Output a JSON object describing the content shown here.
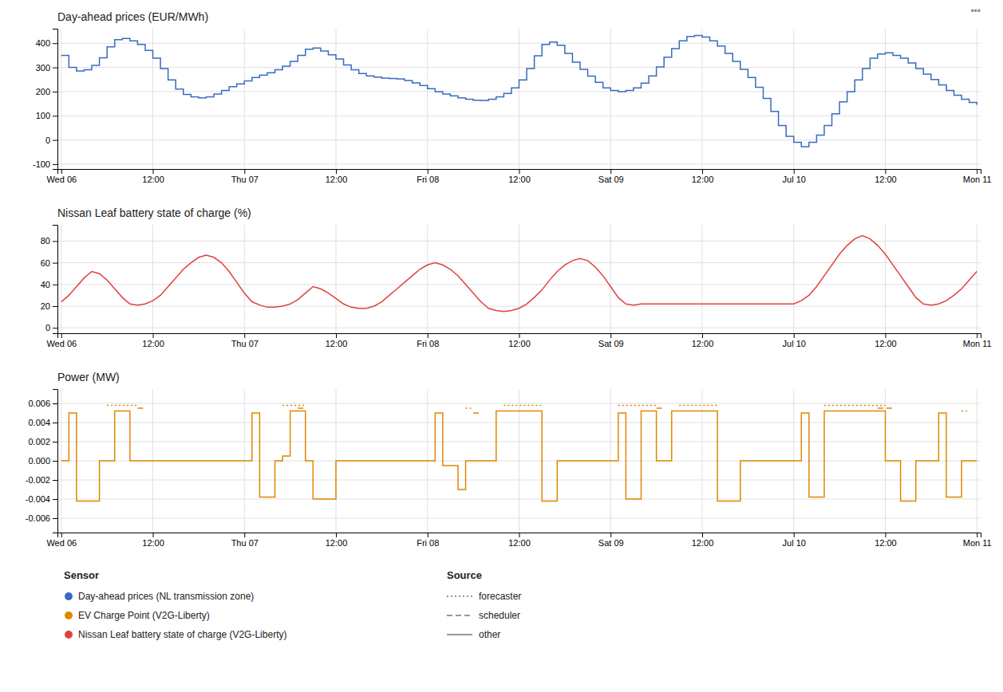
{
  "chart_data": [
    {
      "type": "step",
      "title": "Day-ahead prices (EUR/MWh)",
      "x": [
        0,
        1,
        2,
        3,
        4,
        5,
        6,
        7,
        8,
        9,
        10,
        11,
        12,
        13,
        14,
        15,
        16,
        17,
        18,
        19,
        20,
        21,
        22,
        23,
        24,
        25,
        26,
        27,
        28,
        29,
        30,
        31,
        32,
        33,
        34,
        35,
        36,
        37,
        38,
        39,
        40,
        41,
        42,
        43,
        44,
        45,
        46,
        47,
        48,
        49,
        50,
        51,
        52,
        53,
        54,
        55,
        56,
        57,
        58,
        59,
        60,
        61,
        62,
        63,
        64,
        65,
        66,
        67,
        68,
        69,
        70,
        71,
        72,
        73,
        74,
        75,
        76,
        77,
        78,
        79,
        80,
        81,
        82,
        83,
        84,
        85,
        86,
        87,
        88,
        89,
        90,
        91,
        92,
        93,
        94,
        95,
        96,
        97,
        98,
        99,
        100,
        101,
        102,
        103,
        104,
        105,
        106,
        107,
        108,
        109,
        110,
        111,
        112,
        113,
        114,
        115,
        116,
        117,
        118,
        119,
        120
      ],
      "series": [
        {
          "color": "#3a6abf",
          "values": [
            350,
            300,
            285,
            290,
            308,
            340,
            385,
            415,
            420,
            410,
            395,
            370,
            338,
            295,
            248,
            210,
            188,
            178,
            174,
            178,
            190,
            205,
            220,
            232,
            244,
            258,
            268,
            278,
            290,
            305,
            325,
            350,
            375,
            380,
            368,
            352,
            335,
            310,
            290,
            275,
            265,
            260,
            256,
            254,
            252,
            246,
            236,
            225,
            212,
            200,
            190,
            182,
            174,
            168,
            164,
            163,
            168,
            178,
            192,
            215,
            248,
            295,
            348,
            395,
            405,
            392,
            358,
            322,
            292,
            264,
            238,
            215,
            205,
            200,
            205,
            215,
            235,
            265,
            302,
            342,
            378,
            410,
            428,
            432,
            425,
            410,
            388,
            358,
            325,
            292,
            258,
            218,
            172,
            118,
            60,
            15,
            -10,
            -28,
            -10,
            20,
            60,
            108,
            158,
            200,
            248,
            295,
            338,
            355,
            360,
            350,
            338,
            318,
            295,
            272,
            250,
            228,
            205,
            185,
            168,
            155,
            145
          ]
        }
      ],
      "xlim": [
        -0.5,
        120.5
      ],
      "xticks": [
        {
          "value": 0,
          "label": "Wed 06"
        },
        {
          "value": 12,
          "label": "12:00"
        },
        {
          "value": 24,
          "label": "Thu 07"
        },
        {
          "value": 36,
          "label": "12:00"
        },
        {
          "value": 48,
          "label": "Fri 08"
        },
        {
          "value": 60,
          "label": "12:00"
        },
        {
          "value": 72,
          "label": "Sat 09"
        },
        {
          "value": 84,
          "label": "12:00"
        },
        {
          "value": 96,
          "label": "Jul 10"
        },
        {
          "value": 108,
          "label": "12:00"
        },
        {
          "value": 120,
          "label": "Mon 11"
        }
      ],
      "ylim": [
        -120,
        460
      ],
      "yticks": [
        -100,
        0,
        100,
        200,
        300,
        400
      ],
      "grid": true
    },
    {
      "type": "line",
      "title": "Nissan Leaf battery state of charge (%)",
      "x": [
        0,
        1,
        2,
        3,
        4,
        5,
        6,
        7,
        8,
        9,
        10,
        11,
        12,
        13,
        14,
        15,
        16,
        17,
        18,
        19,
        20,
        21,
        22,
        23,
        24,
        25,
        26,
        27,
        28,
        29,
        30,
        31,
        32,
        33,
        34,
        35,
        36,
        37,
        38,
        39,
        40,
        41,
        42,
        43,
        44,
        45,
        46,
        47,
        48,
        49,
        50,
        51,
        52,
        53,
        54,
        55,
        56,
        57,
        58,
        59,
        60,
        61,
        62,
        63,
        64,
        65,
        66,
        67,
        68,
        69,
        70,
        71,
        72,
        73,
        74,
        75,
        76,
        77,
        78,
        79,
        80,
        81,
        82,
        83,
        84,
        85,
        86,
        87,
        88,
        89,
        90,
        91,
        92,
        93,
        94,
        95,
        96,
        97,
        98,
        99,
        100,
        101,
        102,
        103,
        104,
        105,
        106,
        107,
        108,
        109,
        110,
        111,
        112,
        113,
        114,
        115,
        116,
        117,
        118,
        119,
        120
      ],
      "series": [
        {
          "color": "#e04040",
          "values": [
            24,
            30,
            38,
            46,
            52,
            50,
            44,
            36,
            28,
            22,
            21,
            22,
            25,
            30,
            38,
            46,
            54,
            60,
            65,
            67,
            65,
            60,
            52,
            42,
            32,
            24,
            21,
            19,
            19,
            20,
            22,
            26,
            32,
            38,
            36,
            32,
            27,
            22,
            19,
            18,
            18,
            20,
            24,
            30,
            36,
            42,
            48,
            54,
            58,
            60,
            58,
            54,
            48,
            40,
            32,
            24,
            18,
            16,
            15,
            16,
            18,
            22,
            28,
            35,
            44,
            52,
            58,
            62,
            64,
            62,
            56,
            48,
            38,
            28,
            22,
            21,
            22,
            22,
            22,
            22,
            22,
            22,
            22,
            22,
            22,
            22,
            22,
            22,
            22,
            22,
            22,
            22,
            22,
            22,
            22,
            22,
            22,
            25,
            30,
            38,
            48,
            58,
            68,
            76,
            82,
            85,
            82,
            76,
            68,
            58,
            48,
            38,
            28,
            22,
            21,
            22,
            25,
            30,
            36,
            44,
            52
          ]
        }
      ],
      "xlim": [
        -0.5,
        120.5
      ],
      "xticks": [
        {
          "value": 0,
          "label": "Wed 06"
        },
        {
          "value": 12,
          "label": "12:00"
        },
        {
          "value": 24,
          "label": "Thu 07"
        },
        {
          "value": 36,
          "label": "12:00"
        },
        {
          "value": 48,
          "label": "Fri 08"
        },
        {
          "value": 60,
          "label": "12:00"
        },
        {
          "value": 72,
          "label": "Sat 09"
        },
        {
          "value": 84,
          "label": "12:00"
        },
        {
          "value": 96,
          "label": "Jul 10"
        },
        {
          "value": 108,
          "label": "12:00"
        },
        {
          "value": 120,
          "label": "Mon 11"
        }
      ],
      "ylim": [
        -5,
        95
      ],
      "yticks": [
        0,
        20,
        40,
        60,
        80
      ],
      "grid": true
    },
    {
      "type": "step",
      "title": "Power (MW)",
      "x": [
        0,
        1,
        2,
        3,
        4,
        5,
        6,
        7,
        8,
        9,
        10,
        11,
        12,
        13,
        14,
        15,
        16,
        17,
        18,
        19,
        20,
        21,
        22,
        23,
        24,
        25,
        26,
        27,
        28,
        29,
        30,
        31,
        32,
        33,
        34,
        35,
        36,
        37,
        38,
        39,
        40,
        41,
        42,
        43,
        44,
        45,
        46,
        47,
        48,
        49,
        50,
        51,
        52,
        53,
        54,
        55,
        56,
        57,
        58,
        59,
        60,
        61,
        62,
        63,
        64,
        65,
        66,
        67,
        68,
        69,
        70,
        71,
        72,
        73,
        74,
        75,
        76,
        77,
        78,
        79,
        80,
        81,
        82,
        83,
        84,
        85,
        86,
        87,
        88,
        89,
        90,
        91,
        92,
        93,
        94,
        95,
        96,
        97,
        98,
        99,
        100,
        101,
        102,
        103,
        104,
        105,
        106,
        107,
        108,
        109,
        110,
        111,
        112,
        113,
        114,
        115,
        116,
        117,
        118,
        119,
        120
      ],
      "series": [
        {
          "color": "#e08800",
          "line_style": "solid",
          "values": [
            0,
            0.005,
            -0.0042,
            -0.0042,
            -0.0042,
            0,
            0,
            0.0052,
            0.0052,
            0,
            0,
            0,
            0,
            0,
            0,
            0,
            0,
            0,
            0,
            0,
            0,
            0,
            0,
            0,
            0,
            0.005,
            -0.0038,
            -0.0038,
            0,
            0.0005,
            0.0052,
            0.0052,
            0,
            -0.004,
            -0.004,
            -0.004,
            0,
            0,
            0,
            0,
            0,
            0,
            0,
            0,
            0,
            0,
            0,
            0,
            0,
            0.005,
            -0.0005,
            -0.0005,
            -0.003,
            0,
            0,
            0,
            0,
            0.0052,
            0.0052,
            0.0052,
            0.0052,
            0.0052,
            0.0052,
            -0.0042,
            -0.0042,
            0,
            0,
            0,
            0,
            0,
            0,
            0,
            0,
            0.005,
            -0.004,
            -0.004,
            0.0052,
            0.0052,
            0,
            0,
            0.0052,
            0.0052,
            0.0052,
            0.0052,
            0.0052,
            0.0052,
            -0.0042,
            -0.0042,
            -0.0042,
            0,
            0,
            0,
            0,
            0,
            0,
            0,
            0,
            0.005,
            -0.0038,
            -0.0038,
            0.0052,
            0.0052,
            0.0052,
            0.0052,
            0.0052,
            0.0052,
            0.0052,
            0.0052,
            0,
            0,
            -0.0042,
            -0.0042,
            0,
            0,
            0,
            0.005,
            -0.0038,
            -0.0038,
            0,
            0,
            0
          ]
        },
        {
          "color": "#e08800",
          "line_style": "dotted",
          "values": [
            null,
            null,
            null,
            null,
            null,
            null,
            0.0058,
            0.0058,
            0.0058,
            0.0058,
            0.0058,
            null,
            null,
            null,
            null,
            null,
            null,
            null,
            null,
            null,
            null,
            null,
            null,
            null,
            null,
            null,
            null,
            null,
            null,
            0.0058,
            0.0058,
            0.0058,
            0.0058,
            null,
            null,
            null,
            null,
            null,
            null,
            null,
            null,
            null,
            null,
            null,
            null,
            null,
            null,
            null,
            null,
            null,
            null,
            null,
            null,
            0.0055,
            0.0055,
            null,
            null,
            null,
            0.0058,
            0.0058,
            0.0058,
            0.0058,
            0.0058,
            0.0058,
            null,
            null,
            null,
            null,
            null,
            null,
            null,
            null,
            null,
            0.0058,
            0.0058,
            0.0058,
            0.0058,
            0.0058,
            0.0058,
            null,
            null,
            0.0058,
            0.0058,
            0.0058,
            0.0058,
            0.0058,
            0.0058,
            null,
            null,
            null,
            null,
            null,
            null,
            null,
            null,
            null,
            null,
            null,
            null,
            null,
            0.0058,
            0.0058,
            0.0058,
            0.0058,
            0.0058,
            0.0058,
            0.0058,
            0.0058,
            0.0058,
            null,
            null,
            null,
            null,
            null,
            null,
            null,
            null,
            null,
            0.0052,
            0.0052,
            null
          ]
        },
        {
          "color": "#e08800",
          "line_style": "dashed",
          "values": [
            null,
            null,
            null,
            null,
            null,
            null,
            null,
            null,
            null,
            null,
            0.0055,
            0.0055,
            null,
            null,
            null,
            null,
            null,
            null,
            null,
            null,
            null,
            null,
            null,
            null,
            null,
            null,
            null,
            null,
            null,
            null,
            null,
            0.0055,
            0.0055,
            null,
            null,
            null,
            null,
            null,
            null,
            null,
            null,
            null,
            null,
            null,
            null,
            null,
            null,
            null,
            null,
            null,
            null,
            null,
            null,
            null,
            0.005,
            0.005,
            null,
            null,
            null,
            null,
            null,
            null,
            null,
            null,
            null,
            null,
            null,
            null,
            null,
            null,
            null,
            null,
            null,
            null,
            null,
            null,
            null,
            null,
            0.0055,
            0.0055,
            null,
            null,
            null,
            null,
            null,
            null,
            null,
            null,
            null,
            null,
            null,
            null,
            null,
            null,
            null,
            null,
            null,
            null,
            null,
            null,
            null,
            null,
            null,
            null,
            null,
            null,
            null,
            0.0055,
            0.0055,
            0.0055,
            null,
            null,
            null,
            null,
            null,
            null,
            null,
            null,
            null,
            null,
            null
          ]
        }
      ],
      "xlim": [
        -0.5,
        120.5
      ],
      "xticks": [
        {
          "value": 0,
          "label": "Wed 06"
        },
        {
          "value": 12,
          "label": "12:00"
        },
        {
          "value": 24,
          "label": "Thu 07"
        },
        {
          "value": 36,
          "label": "12:00"
        },
        {
          "value": 48,
          "label": "Fri 08"
        },
        {
          "value": 60,
          "label": "12:00"
        },
        {
          "value": 72,
          "label": "Sat 09"
        },
        {
          "value": 84,
          "label": "12:00"
        },
        {
          "value": 96,
          "label": "Jul 10"
        },
        {
          "value": 108,
          "label": "12:00"
        },
        {
          "value": 120,
          "label": "Mon 11"
        }
      ],
      "ylim": [
        -0.0075,
        0.0075
      ],
      "yticks": [
        -0.006,
        -0.004,
        -0.002,
        {
          "value": 0,
          "label": "0.000"
        },
        0.002,
        0.004,
        0.006
      ],
      "grid": true
    }
  ],
  "legend": {
    "sensor": {
      "title": "Sensor",
      "entries": [
        {
          "name": "Day-ahead prices (NL transmission zone)",
          "color": "#3a6abf"
        },
        {
          "name": "EV Charge Point (V2G-Liberty)",
          "color": "#e08800"
        },
        {
          "name": "Nissan Leaf battery state of charge (V2G-Liberty)",
          "color": "#e04040"
        }
      ]
    },
    "source": {
      "title": "Source",
      "entries": [
        {
          "name": "forecaster",
          "line_style": "dotted"
        },
        {
          "name": "scheduler",
          "line_style": "dashed"
        },
        {
          "name": "other",
          "line_style": "solid"
        }
      ]
    }
  },
  "annotations": [
    "•••"
  ]
}
